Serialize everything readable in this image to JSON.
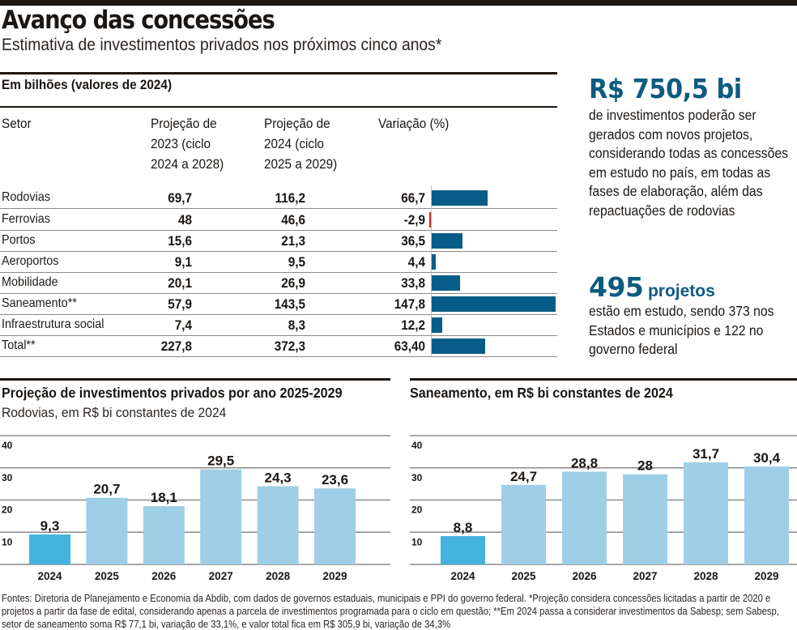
{
  "header": {
    "title": "Avanço das concessões",
    "subtitle": "Estimativa de investimentos privados nos próximos cinco anos*"
  },
  "table": {
    "caption": "Em bilhões (valores de 2024)",
    "columns": {
      "sector": "Setor",
      "proj2023": [
        "Projeção de",
        "2023 (ciclo",
        "2024 a 2028)"
      ],
      "proj2024": [
        "Projeção de",
        "2024 (ciclo",
        "2025 a 2029)"
      ],
      "variation": "Variação (%)"
    },
    "rows": [
      {
        "sector": "Rodovias",
        "proj2023": "69,7",
        "proj2024": "116,2",
        "variation": "66,7",
        "variation_value": 66.7
      },
      {
        "sector": "Ferrovias",
        "proj2023": "48",
        "proj2024": "46,6",
        "variation": "-2,9",
        "variation_value": -2.9
      },
      {
        "sector": "Portos",
        "proj2023": "15,6",
        "proj2024": "21,3",
        "variation": "36,5",
        "variation_value": 36.5
      },
      {
        "sector": "Aeroportos",
        "proj2023": "9,1",
        "proj2024": "9,5",
        "variation": "4,4",
        "variation_value": 4.4
      },
      {
        "sector": "Mobilidade",
        "proj2023": "20,1",
        "proj2024": "26,9",
        "variation": "33,8",
        "variation_value": 33.8
      },
      {
        "sector": "Saneamento**",
        "proj2023": "57,9",
        "proj2024": "143,5",
        "variation": "147,8",
        "variation_value": 147.8
      },
      {
        "sector": "Infraestrutura social",
        "proj2023": "7,4",
        "proj2024": "8,3",
        "variation": "12,2",
        "variation_value": 12.2
      },
      {
        "sector": "Total**",
        "proj2023": "227,8",
        "proj2024": "372,3",
        "variation": "63,40",
        "variation_value": 63.4
      }
    ]
  },
  "highlights": {
    "amount": "R$ 750,5 bi",
    "amount_text": "de investimentos poderão ser gerados com novos projetos, considerando todas as concessões em estudo no país, em todas as fases de elaboração, além das repactuações de rodovias",
    "projects_number": "495",
    "projects_word": "projetos",
    "projects_text": "estão em estudo, sendo 373 nos Estados e municípios e 122 no governo federal"
  },
  "colors": {
    "positive_bar": "#075d87",
    "negative_bar": "#c9262c",
    "highlight_bar": "#45b3e0",
    "regular_bar": "#9fcfe6",
    "accent_text": "#0d5b80"
  },
  "chart_data": [
    {
      "type": "bar",
      "title": "Projeção de investimentos privados por ano 2025-2029",
      "subtitle": "Rodovias, em R$ bi constantes de 2024",
      "categories": [
        "2024",
        "2025",
        "2026",
        "2027",
        "2028",
        "2029"
      ],
      "values": [
        9.3,
        20.7,
        18.1,
        29.5,
        24.3,
        23.6
      ],
      "labels": [
        "9,3",
        "20,7",
        "18,1",
        "29,5",
        "24,3",
        "23,6"
      ],
      "yticks": [
        "10",
        "20",
        "30",
        "40"
      ],
      "ytick_values": [
        10,
        20,
        30,
        40
      ],
      "ylim": [
        0,
        40
      ],
      "grid": true,
      "highlight_index": 0,
      "xlabel": "",
      "ylabel": ""
    },
    {
      "type": "bar",
      "title": "Saneamento,  em R$ bi constantes de 2024",
      "subtitle": "",
      "categories": [
        "2024",
        "2025",
        "2026",
        "2027",
        "2028",
        "2029"
      ],
      "values": [
        8.8,
        24.7,
        28.8,
        28.0,
        31.7,
        30.4
      ],
      "labels": [
        "8,8",
        "24,7",
        "28,8",
        "28",
        "31,7",
        "30,4"
      ],
      "yticks": [
        "10",
        "20",
        "30",
        "40"
      ],
      "ytick_values": [
        10,
        20,
        30,
        40
      ],
      "ylim": [
        0,
        40
      ],
      "grid": true,
      "highlight_index": 0,
      "xlabel": "",
      "ylabel": ""
    }
  ],
  "footnote": "Fontes: Diretoria de Planejamento e Economia da Abdib, com dados de governos estaduais, municipais e PPI do governo federal. *Projeção considera concessões licitadas a partir de 2020 e projetos a partir da fase de edital, considerando apenas a parcela de investimentos programada para o ciclo em questão; **Em 2024 passa a considerar investimentos da Sabesp; sem Sabesp, setor de saneamento soma R$ 77,1 bi, variação de 33,1%, e valor total fica em R$ 305,9 bi, variação de 34,3%"
}
